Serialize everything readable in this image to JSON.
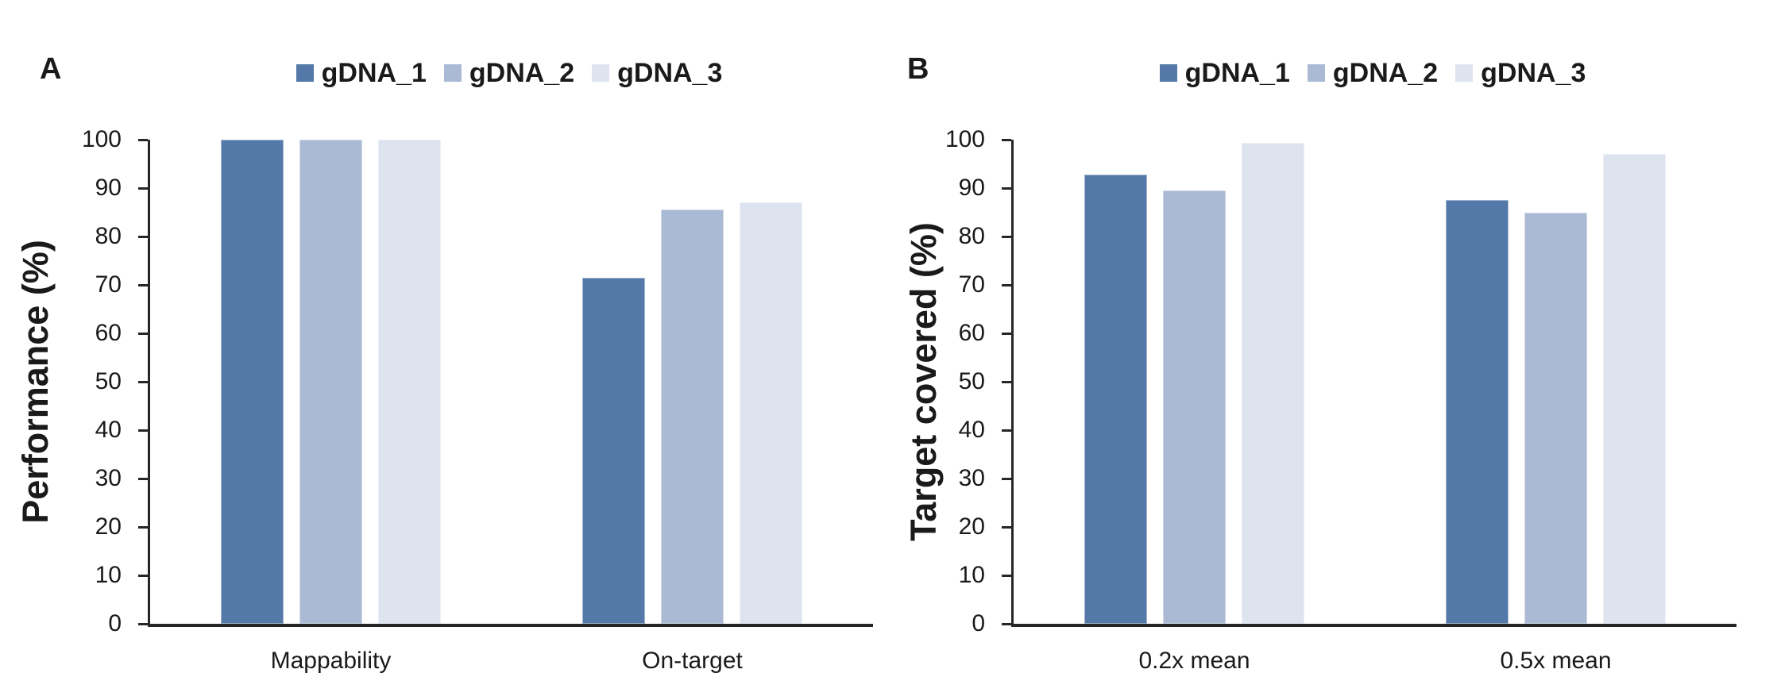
{
  "figure": {
    "panels": [
      {
        "label": "A",
        "y_axis_title": "Performance (%)"
      },
      {
        "label": "B",
        "y_axis_title": "Target covered (%)"
      }
    ],
    "colors": {
      "axis": "#262626",
      "text": "#1a1a1a"
    }
  },
  "chart_data": [
    {
      "type": "bar",
      "panel_label": "A",
      "title": "",
      "xlabel": "",
      "ylabel": "Performance (%)",
      "categories": [
        "Mappability",
        "On-target"
      ],
      "series": [
        {
          "name": "gDNA_1",
          "color": "#5478a8",
          "values": [
            100,
            71.4
          ]
        },
        {
          "name": "gDNA_2",
          "color": "#aab9d4",
          "values": [
            100,
            85.5
          ]
        },
        {
          "name": "gDNA_3",
          "color": "#dde4f0",
          "values": [
            100,
            87.0
          ]
        }
      ],
      "ylim": [
        0,
        100
      ],
      "ytick_step": 10,
      "grid": false,
      "legend_position": "top-center"
    },
    {
      "type": "bar",
      "panel_label": "B",
      "title": "",
      "xlabel": "",
      "ylabel": "Target covered (%)",
      "categories": [
        "0.2x mean",
        "0.5x mean"
      ],
      "series": [
        {
          "name": "gDNA_1",
          "color": "#5478a8",
          "values": [
            92.8,
            87.5
          ]
        },
        {
          "name": "gDNA_2",
          "color": "#aab9d4",
          "values": [
            89.5,
            84.9
          ]
        },
        {
          "name": "gDNA_3",
          "color": "#dde4f0",
          "values": [
            99.4,
            97.0
          ]
        }
      ],
      "ylim": [
        0,
        100
      ],
      "ytick_step": 10,
      "grid": false,
      "legend_position": "top-center"
    }
  ]
}
